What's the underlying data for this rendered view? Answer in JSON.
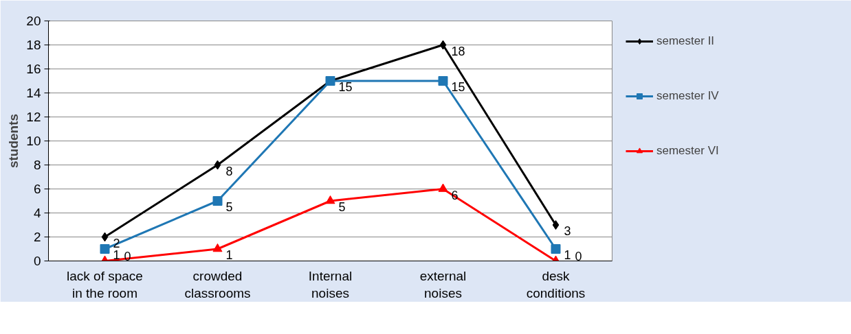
{
  "chart_data": {
    "type": "line",
    "ylabel": "students",
    "categories": [
      "lack of space in the room",
      "crowded classrooms",
      "Internal noises",
      "external noises",
      "desk conditions"
    ],
    "series": [
      {
        "name": "semester II",
        "color": "#000000",
        "marker": "diamond",
        "values": [
          2,
          8,
          15,
          18,
          3
        ],
        "value_labels": [
          "2",
          "8",
          null,
          "18",
          "3"
        ]
      },
      {
        "name": "semester IV",
        "color": "#1f77b4",
        "marker": "square",
        "values": [
          1,
          5,
          15,
          15,
          1
        ]
      },
      {
        "name": "semester VI",
        "color": "#ff0000",
        "marker": "triangle",
        "values": [
          0,
          1,
          5,
          6,
          0
        ]
      }
    ],
    "ylim": [
      0,
      20
    ],
    "yticks": [
      0,
      2,
      4,
      6,
      8,
      10,
      12,
      14,
      16,
      18,
      20
    ],
    "grid": "y",
    "legend": "right",
    "data_labels": true,
    "line_style": "solid"
  }
}
